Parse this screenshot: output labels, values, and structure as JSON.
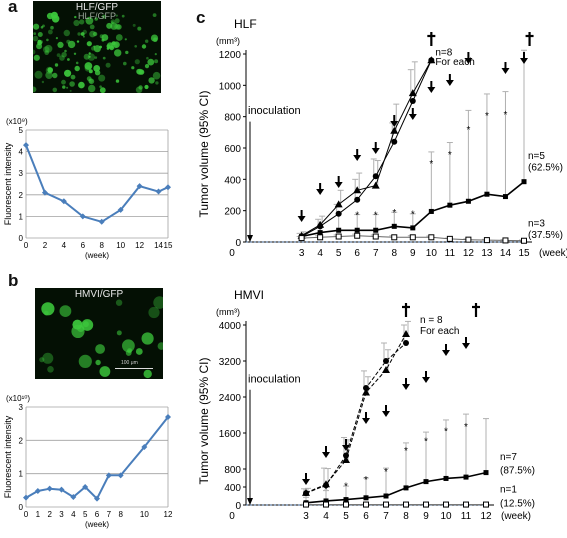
{
  "panels": {
    "a": {
      "letter": "a",
      "image_title": "HLF/GFP",
      "image_title_ghost": "HLF/GFP",
      "exponent": "(x10⁹)"
    },
    "b": {
      "letter": "b",
      "image_title": "HMVI/GFP",
      "scale_bar_label": "100 μm",
      "exponent": "(x10¹⁰)"
    },
    "c": {
      "letter": "c"
    }
  },
  "colors": {
    "line_small": "#4a7ebb",
    "micro_bg": "#041004",
    "gfp_green": "#3cc83c",
    "axis": "#000000",
    "grid": "#a0a0a0",
    "error_bar": "#b0b0b0"
  },
  "chart_data": [
    {
      "id": "a-chart",
      "type": "line",
      "title": "",
      "xlabel": "(week)",
      "ylabel": "Fluorescent intensity",
      "y_multiplier_label": "(x10⁹)",
      "xlim": [
        0,
        15
      ],
      "ylim": [
        0,
        5
      ],
      "x_ticks": [
        0,
        2,
        4,
        6,
        8,
        10,
        12,
        14,
        15
      ],
      "y_ticks": [
        0,
        1,
        2,
        3,
        4,
        5
      ],
      "x_tick_labels": [
        "0",
        "2",
        "4",
        "6",
        "8",
        "10",
        "12",
        "14",
        "15"
      ],
      "y_tick_labels": [
        "0",
        "1",
        "2",
        "3",
        "4",
        "5"
      ],
      "grid": true,
      "series": [
        {
          "x": [
            0,
            2,
            4,
            6,
            8,
            10,
            12,
            14,
            15
          ],
          "values": [
            4.3,
            2.1,
            1.7,
            1.0,
            0.75,
            1.3,
            2.4,
            2.15,
            2.35
          ]
        }
      ]
    },
    {
      "id": "b-chart",
      "type": "line",
      "title": "",
      "xlabel": "(week)",
      "ylabel": "Fluorescent intensity",
      "y_multiplier_label": "(x10¹⁰)",
      "xlim": [
        0,
        12
      ],
      "ylim": [
        0,
        3
      ],
      "x_ticks": [
        0,
        1,
        2,
        3,
        4,
        5,
        6,
        7,
        8,
        10,
        12
      ],
      "y_ticks": [
        0,
        1,
        2,
        3
      ],
      "x_tick_labels": [
        "0",
        "1",
        "2",
        "3",
        "4",
        "5",
        "6",
        "7",
        "8",
        "10",
        "12"
      ],
      "y_tick_labels": [
        "0",
        "1",
        "2",
        "3"
      ],
      "grid": true,
      "series": [
        {
          "x": [
            0,
            1,
            2,
            3,
            4,
            5,
            6,
            7,
            8,
            10,
            12
          ],
          "values": [
            0.28,
            0.48,
            0.55,
            0.52,
            0.3,
            0.6,
            0.25,
            0.95,
            0.95,
            1.8,
            2.7
          ]
        }
      ]
    },
    {
      "id": "c-hlf",
      "type": "line",
      "title": "HLF",
      "unit_label": "(mm³)",
      "xlabel": "(week)",
      "ylabel": "Tumor volume (95% CI)",
      "xlim": [
        0,
        15
      ],
      "ylim": [
        0,
        1200
      ],
      "x_ticks": [
        0,
        3,
        4,
        5,
        6,
        7,
        8,
        9,
        10,
        11,
        12,
        13,
        14,
        15
      ],
      "y_ticks": [
        0,
        200,
        400,
        600,
        800,
        1000,
        1200
      ],
      "x_tick_labels": [
        "0",
        "3",
        "4",
        "5",
        "6",
        "7",
        "8",
        "9",
        "10",
        "11",
        "12",
        "13",
        "14",
        "15"
      ],
      "y_tick_labels": [
        "0",
        "200",
        "400",
        "600",
        "800",
        "1000",
        "1200"
      ],
      "inoculation_label": "inoculation",
      "treatment_weeks": [
        3,
        4,
        5,
        6,
        7,
        8,
        9,
        10,
        11,
        12,
        14,
        15
      ],
      "death_weeks": [
        10,
        15.3
      ],
      "star_weeks": [
        6,
        7,
        8,
        9,
        10,
        11,
        12,
        13,
        14,
        15
      ],
      "annotations": [
        {
          "text": "n=8",
          "x": 10,
          "y": 1190
        },
        {
          "text": "For each",
          "x": 10,
          "y": 1130
        },
        {
          "text": "n=5",
          "x": 15,
          "y": 530
        },
        {
          "text": "(62.5%)",
          "x": 15,
          "y": 455
        },
        {
          "text": "n=3",
          "x": 15,
          "y": 100
        },
        {
          "text": "(37.5%)",
          "x": 15,
          "y": 25
        }
      ],
      "series": [
        {
          "marker": "triangle",
          "line": "solid",
          "x": [
            3,
            4,
            5,
            6,
            7,
            8,
            9,
            10
          ],
          "values": [
            40,
            110,
            240,
            330,
            360,
            710,
            950,
            1160
          ],
          "err": [
            25,
            55,
            90,
            110,
            160,
            170,
            200,
            0
          ]
        },
        {
          "marker": "circle",
          "line": "solid",
          "x": [
            3,
            4,
            5,
            6,
            7,
            8,
            9,
            10
          ],
          "values": [
            35,
            100,
            180,
            270,
            420,
            640,
            900,
            1160
          ],
          "err": [
            20,
            45,
            60,
            130,
            110,
            120,
            200,
            0
          ]
        },
        {
          "marker": "square",
          "line": "solid",
          "x": [
            3,
            4,
            5,
            6,
            7,
            8,
            9,
            10,
            11,
            12,
            13,
            14,
            15
          ],
          "values": [
            35,
            60,
            75,
            75,
            75,
            100,
            90,
            195,
            235,
            260,
            305,
            290,
            385
          ],
          "err": [
            20,
            40,
            110,
            100,
            100,
            90,
            90,
            380,
            400,
            580,
            640,
            670,
            1000
          ]
        },
        {
          "marker": "open-square",
          "line": "solid",
          "x": [
            3,
            4,
            5,
            6,
            7,
            8,
            9,
            10,
            11,
            12,
            13,
            14,
            15
          ],
          "values": [
            25,
            30,
            35,
            40,
            35,
            30,
            30,
            30,
            20,
            15,
            12,
            10,
            8
          ],
          "err": [
            10,
            10,
            10,
            10,
            10,
            10,
            10,
            8,
            5,
            5,
            5,
            5,
            5
          ]
        }
      ]
    },
    {
      "id": "c-hmvi",
      "type": "line",
      "title": "HMVI",
      "unit_label": "(mm³)",
      "xlabel": "(week)",
      "ylabel": "Tumor volume (95% CI)",
      "xlim": [
        0,
        12
      ],
      "ylim": [
        0,
        4000
      ],
      "x_ticks": [
        0,
        3,
        4,
        5,
        6,
        7,
        8,
        9,
        10,
        11,
        12
      ],
      "y_ticks": [
        0,
        400,
        800,
        1600,
        2400,
        3200,
        4000
      ],
      "x_tick_labels": [
        "0",
        "3",
        "4",
        "5",
        "6",
        "7",
        "8",
        "9",
        "10",
        "11",
        "12"
      ],
      "y_tick_labels": [
        "0",
        "400",
        "800",
        "1600",
        "2400",
        "3200",
        "4000"
      ],
      "inoculation_label": "inoculation",
      "treatment_weeks": [
        3,
        4,
        5,
        6,
        7,
        8,
        9,
        10,
        11
      ],
      "death_weeks": [
        8,
        11.5
      ],
      "star_weeks": [
        3,
        4,
        5,
        6,
        7,
        8,
        9,
        10,
        11
      ],
      "annotations": [
        {
          "text": "n = 8",
          "x": 8.5,
          "y": 4050
        },
        {
          "text": "For each",
          "x": 8.5,
          "y": 3800
        },
        {
          "text": "n=7",
          "x": 12.5,
          "y": 1000
        },
        {
          "text": "(87.5%)",
          "x": 12.5,
          "y": 700
        },
        {
          "text": "n=1",
          "x": 12.5,
          "y": 280
        },
        {
          "text": "(12.5%)",
          "x": 12.5,
          "y": -30
        }
      ],
      "series": [
        {
          "marker": "triangle",
          "line": "dashed",
          "x": [
            3,
            4,
            5,
            6,
            7,
            8
          ],
          "values": [
            270,
            460,
            1000,
            2500,
            3000,
            3800
          ],
          "err": [
            100,
            350,
            450,
            350,
            450,
            400
          ]
        },
        {
          "marker": "circle",
          "line": "dashed",
          "x": [
            3,
            4,
            5,
            6,
            7,
            8
          ],
          "values": [
            260,
            440,
            1100,
            2600,
            3200,
            3600
          ],
          "err": [
            100,
            380,
            400,
            380,
            400,
            400
          ]
        },
        {
          "marker": "square",
          "line": "solid",
          "x": [
            3,
            4,
            5,
            6,
            7,
            8,
            9,
            10,
            11,
            12
          ],
          "values": [
            50,
            90,
            120,
            160,
            200,
            380,
            520,
            590,
            620,
            720
          ],
          "err": [
            120,
            230,
            300,
            440,
            620,
            1000,
            1100,
            1300,
            1400,
            1200
          ]
        },
        {
          "marker": "open-square",
          "line": "solid",
          "x": [
            3,
            4,
            5,
            6,
            7,
            8,
            9,
            10,
            11,
            12
          ],
          "values": [
            10,
            10,
            10,
            10,
            10,
            10,
            10,
            10,
            10,
            10
          ],
          "err": [
            5,
            5,
            5,
            5,
            5,
            5,
            5,
            5,
            5,
            5
          ]
        }
      ]
    }
  ]
}
